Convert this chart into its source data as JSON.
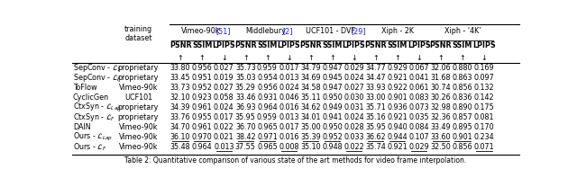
{
  "title": "Table 2: Quantitative comparison of various state of the art methods for video frame interpolation.",
  "col_groups": [
    {
      "label": "Vimeo-90k",
      "ref": "51",
      "cols": [
        "PSNR",
        "SSIM",
        "LPIPS"
      ]
    },
    {
      "label": "Middlebury",
      "ref": "2",
      "cols": [
        "PSNR",
        "SSIM",
        "LPIPS"
      ]
    },
    {
      "label": "UCF101 - DVF",
      "ref": "29",
      "cols": [
        "PSNR",
        "SSIM",
        "LPIPS"
      ]
    },
    {
      "label": "Xiph - 2K",
      "ref": "",
      "cols": [
        "PSNR",
        "SSIM",
        "LPIPS"
      ]
    },
    {
      "label": "Xiph - ‘4K’",
      "ref": "",
      "cols": [
        "PSNR",
        "SSIM",
        "LPIPS"
      ]
    }
  ],
  "rows": [
    {
      "method": "SepConv - $\\mathcal{L}_1$",
      "training": "proprietary",
      "values": [
        [
          "33.80",
          "0.956",
          "0.027"
        ],
        [
          "35.73",
          "0.959",
          "0.017"
        ],
        [
          "34.79",
          "0.947",
          "0.029"
        ],
        [
          "34.77",
          "0.929",
          "0.067"
        ],
        [
          "32.06",
          "0.880",
          "0.169"
        ]
      ],
      "underline": [
        [
          false,
          false,
          false
        ],
        [
          false,
          false,
          false
        ],
        [
          false,
          false,
          false
        ],
        [
          false,
          false,
          false
        ],
        [
          false,
          false,
          false
        ]
      ]
    },
    {
      "method": "SepConv - $\\mathcal{L}_F$",
      "training": "proprietary",
      "values": [
        [
          "33.45",
          "0.951",
          "0.019"
        ],
        [
          "35.03",
          "0.954",
          "0.013"
        ],
        [
          "34.69",
          "0.945",
          "0.024"
        ],
        [
          "34.47",
          "0.921",
          "0.041"
        ],
        [
          "31.68",
          "0.863",
          "0.097"
        ]
      ],
      "underline": [
        [
          false,
          false,
          false
        ],
        [
          false,
          false,
          false
        ],
        [
          false,
          false,
          false
        ],
        [
          false,
          false,
          false
        ],
        [
          false,
          false,
          false
        ]
      ]
    },
    {
      "method": "ToFlow",
      "training": "Vimeo-90k",
      "values": [
        [
          "33.73",
          "0.952",
          "0.027"
        ],
        [
          "35.29",
          "0.956",
          "0.024"
        ],
        [
          "34.58",
          "0.947",
          "0.027"
        ],
        [
          "33.93",
          "0.922",
          "0.061"
        ],
        [
          "30.74",
          "0.856",
          "0.132"
        ]
      ],
      "underline": [
        [
          false,
          false,
          false
        ],
        [
          false,
          false,
          false
        ],
        [
          false,
          false,
          false
        ],
        [
          false,
          false,
          false
        ],
        [
          false,
          false,
          false
        ]
      ]
    },
    {
      "method": "CyclicGen",
      "training": "UCF101",
      "values": [
        [
          "32.10",
          "0.923",
          "0.058"
        ],
        [
          "33.46",
          "0.931",
          "0.046"
        ],
        [
          "35.11",
          "0.950",
          "0.030"
        ],
        [
          "33.00",
          "0.901",
          "0.083"
        ],
        [
          "30.26",
          "0.836",
          "0.142"
        ]
      ],
      "underline": [
        [
          false,
          false,
          false
        ],
        [
          false,
          false,
          false
        ],
        [
          false,
          false,
          false
        ],
        [
          false,
          false,
          false
        ],
        [
          false,
          false,
          false
        ]
      ]
    },
    {
      "method": "CtxSyn - $\\mathcal{L}_{Lap}$",
      "training": "proprietary",
      "values": [
        [
          "34.39",
          "0.961",
          "0.024"
        ],
        [
          "36.93",
          "0.964",
          "0.016"
        ],
        [
          "34.62",
          "0.949",
          "0.031"
        ],
        [
          "35.71",
          "0.936",
          "0.073"
        ],
        [
          "32.98",
          "0.890",
          "0.175"
        ]
      ],
      "underline": [
        [
          false,
          false,
          false
        ],
        [
          false,
          false,
          false
        ],
        [
          false,
          false,
          false
        ],
        [
          false,
          false,
          false
        ],
        [
          false,
          false,
          false
        ]
      ]
    },
    {
      "method": "CtxSyn - $\\mathcal{L}_F$",
      "training": "proprietary",
      "values": [
        [
          "33.76",
          "0.955",
          "0.017"
        ],
        [
          "35.95",
          "0.959",
          "0.013"
        ],
        [
          "34.01",
          "0.941",
          "0.024"
        ],
        [
          "35.16",
          "0.921",
          "0.035"
        ],
        [
          "32.36",
          "0.857",
          "0.081"
        ]
      ],
      "underline": [
        [
          false,
          false,
          false
        ],
        [
          false,
          false,
          false
        ],
        [
          false,
          false,
          false
        ],
        [
          false,
          false,
          false
        ],
        [
          false,
          false,
          false
        ]
      ]
    },
    {
      "method": "DAIN",
      "training": "Vimeo-90k",
      "values": [
        [
          "34.70",
          "0.961",
          "0.022"
        ],
        [
          "36.70",
          "0.965",
          "0.017"
        ],
        [
          "35.00",
          "0.950",
          "0.028"
        ],
        [
          "35.95",
          "0.940",
          "0.084"
        ],
        [
          "33.49",
          "0.895",
          "0.170"
        ]
      ],
      "underline": [
        [
          false,
          false,
          false
        ],
        [
          false,
          false,
          false
        ],
        [
          false,
          false,
          false
        ],
        [
          false,
          false,
          false
        ],
        [
          false,
          false,
          false
        ]
      ]
    },
    {
      "method": "Ours - $\\mathcal{L}_{Lap}$",
      "training": "Vimeo-90k",
      "values": [
        [
          "36.10",
          "0.970",
          "0.021"
        ],
        [
          "38.42",
          "0.971",
          "0.016"
        ],
        [
          "35.39",
          "0.952",
          "0.033"
        ],
        [
          "36.62",
          "0.944",
          "0.107"
        ],
        [
          "33.60",
          "0.901",
          "0.234"
        ]
      ],
      "underline": [
        [
          true,
          true,
          false
        ],
        [
          true,
          true,
          false
        ],
        [
          true,
          true,
          false
        ],
        [
          true,
          true,
          false
        ],
        [
          true,
          true,
          false
        ]
      ]
    },
    {
      "method": "Ours - $\\mathcal{L}_F$",
      "training": "Vimeo-90k",
      "values": [
        [
          "35.48",
          "0.964",
          "0.013"
        ],
        [
          "37.55",
          "0.965",
          "0.008"
        ],
        [
          "35.10",
          "0.948",
          "0.022"
        ],
        [
          "35.74",
          "0.921",
          "0.029"
        ],
        [
          "32.50",
          "0.856",
          "0.071"
        ]
      ],
      "underline": [
        [
          false,
          false,
          true
        ],
        [
          false,
          false,
          true
        ],
        [
          false,
          false,
          true
        ],
        [
          false,
          false,
          true
        ],
        [
          false,
          false,
          true
        ]
      ]
    }
  ],
  "bg_color": "#ffffff",
  "text_color": "#000000",
  "ref_color": "#1a1aff",
  "font_size": 5.8,
  "caption_font_size": 5.5
}
